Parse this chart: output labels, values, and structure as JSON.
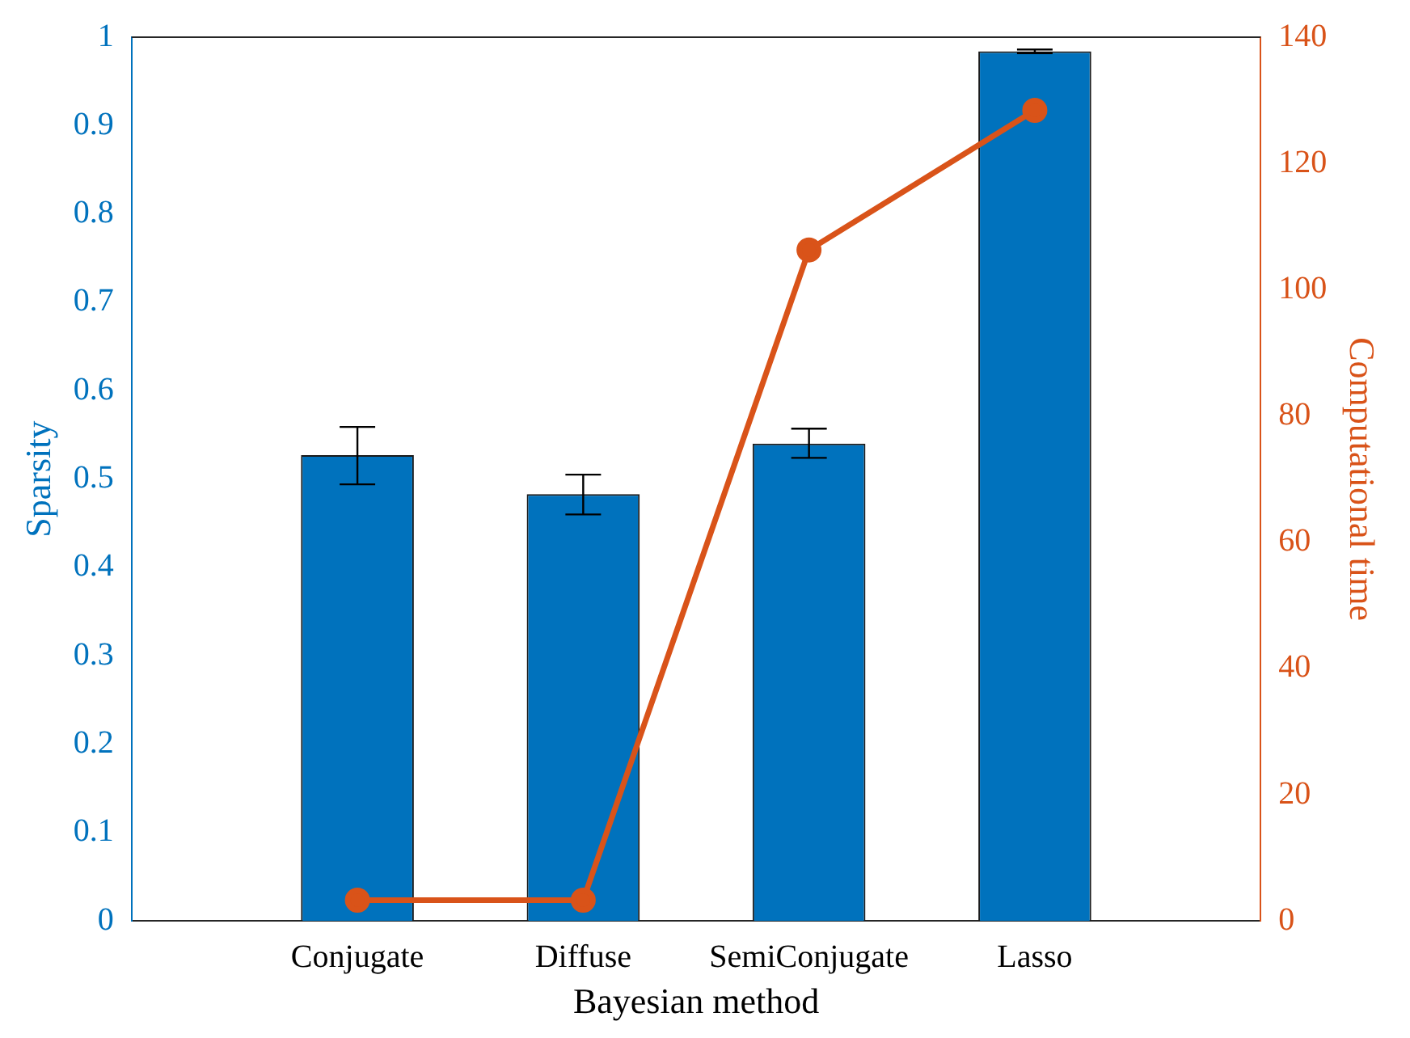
{
  "chart_data": {
    "type": "bar",
    "xlabel": "Bayesian method",
    "ylabel": "Sparsity",
    "y2label": "Computational time",
    "categories": [
      "Conjugate",
      "Diffuse",
      "SemiConjugate",
      "Lasso"
    ],
    "series": [
      {
        "color": "#0072bd",
        "values": [
          0.527,
          0.483,
          0.54,
          0.984
        ],
        "errors": [
          [
            0.494,
            0.559
          ],
          [
            0.46,
            0.505
          ],
          [
            0.524,
            0.557
          ],
          [
            0.982,
            0.986
          ]
        ]
      },
      {
        "type": "line",
        "axis": "y2",
        "color": "#d95319",
        "marker": "circle",
        "values": [
          3.3,
          3.3,
          106.3,
          128.4
        ]
      }
    ],
    "ylim": [
      0,
      1
    ],
    "yticks": [
      0,
      0.1,
      0.2,
      0.3,
      0.4,
      0.5,
      0.6,
      0.7,
      0.8,
      0.9,
      1
    ],
    "y2lim": [
      0,
      140
    ],
    "y2ticks": [
      0,
      20,
      40,
      60,
      80,
      100,
      120,
      140
    ],
    "grid": false,
    "legend": false
  }
}
